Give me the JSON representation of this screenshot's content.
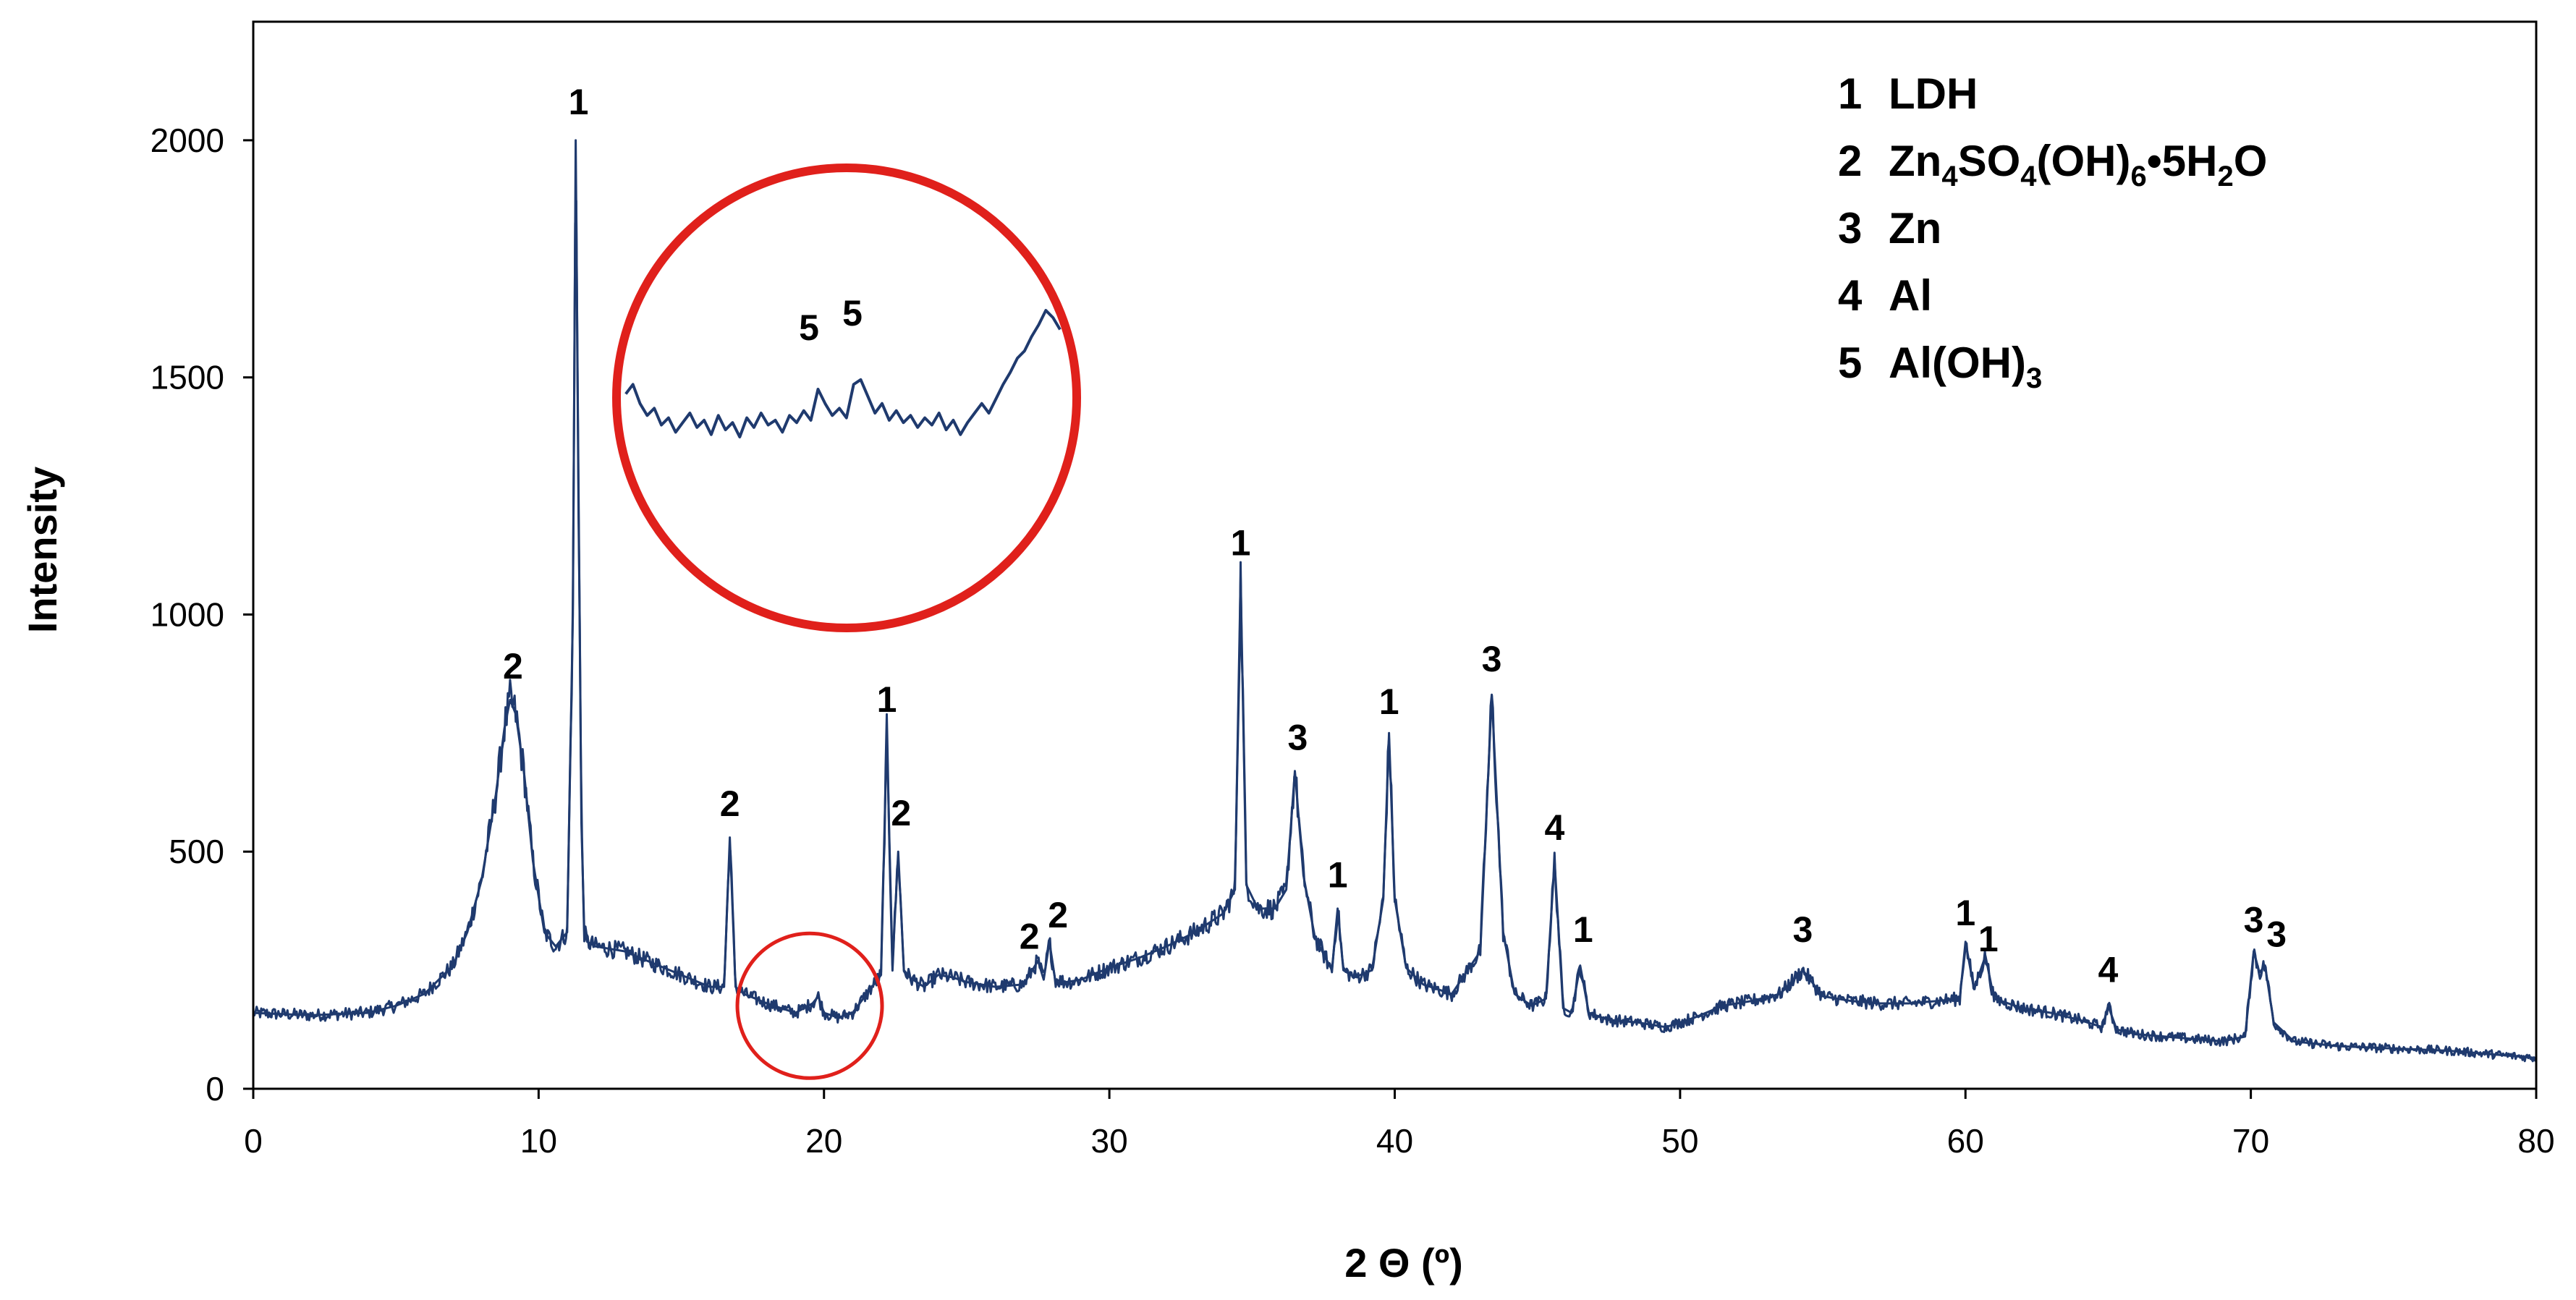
{
  "chart_data": {
    "type": "line",
    "xlabel": "2 Θ (º)",
    "ylabel": "Intensity",
    "xlim": [
      0,
      80
    ],
    "ylim": [
      0,
      2250
    ],
    "xticks": [
      "0",
      "10",
      "20",
      "30",
      "40",
      "50",
      "60",
      "70",
      "80"
    ],
    "yticks": [
      "0",
      "500",
      "1000",
      "1500",
      "2000"
    ],
    "grid": false,
    "line_color": "#1f3a6e",
    "highlight_color": "#e0201b",
    "series": [
      {
        "x": [
          0,
          2,
          4,
          5,
          6,
          7,
          7.5,
          8,
          8.5,
          8.8,
          9.0,
          9.2,
          9.5,
          9.8,
          10.2,
          10.6,
          11.0,
          11.2,
          11.3,
          11.4,
          11.5,
          11.6,
          11.7,
          12,
          13,
          14,
          15,
          16,
          16.5,
          16.7,
          16.9,
          17.2,
          18,
          19,
          19.6,
          19.8,
          20,
          20.5,
          21,
          21.5,
          22.0,
          22.2,
          22.4,
          22.6,
          22.8,
          23.0,
          23.5,
          24,
          24.5,
          25,
          26,
          27,
          27.5,
          27.7,
          27.9,
          28.1,
          28.5,
          29,
          30,
          31,
          32,
          33,
          34,
          34.4,
          34.6,
          34.8,
          35.2,
          35.8,
          36.2,
          36.5,
          36.8,
          37.2,
          37.8,
          38.0,
          38.2,
          38.6,
          39.2,
          39.6,
          39.8,
          40.0,
          40.4,
          41,
          42,
          43.0,
          43.4,
          43.8,
          44.2,
          44.8,
          45.3,
          45.6,
          45.9,
          46.2,
          46.5,
          46.8,
          47.5,
          48.5,
          49.5,
          50.5,
          51.5,
          52.5,
          53.5,
          54.3,
          55,
          56,
          57,
          58,
          59,
          59.8,
          60.0,
          60.3,
          60.7,
          61.0,
          62,
          63,
          64,
          64.8,
          65.0,
          65.3,
          66,
          67,
          68,
          69,
          69.8,
          70.1,
          70.3,
          70.5,
          70.8,
          71.5,
          73,
          75,
          77,
          79,
          80
        ],
        "y": [
          160,
          155,
          160,
          175,
          200,
          260,
          330,
          440,
          620,
          760,
          820,
          790,
          660,
          480,
          330,
          300,
          330,
          1000,
          2000,
          1250,
          560,
          330,
          310,
          300,
          290,
          265,
          240,
          215,
          215,
          530,
          215,
          200,
          180,
          160,
          180,
          195,
          160,
          150,
          160,
          200,
          240,
          750,
          260,
          500,
          250,
          235,
          215,
          240,
          235,
          225,
          215,
          220,
          270,
          230,
          310,
          230,
          225,
          230,
          255,
          275,
          300,
          330,
          370,
          420,
          1080,
          430,
          380,
          380,
          420,
          670,
          450,
          320,
          250,
          380,
          250,
          235,
          250,
          400,
          750,
          400,
          255,
          220,
          200,
          290,
          830,
          330,
          200,
          175,
          190,
          480,
          170,
          160,
          260,
          160,
          145,
          140,
          130,
          150,
          175,
          185,
          200,
          250,
          195,
          185,
          180,
          180,
          185,
          190,
          310,
          210,
          280,
          190,
          170,
          160,
          145,
          130,
          175,
          125,
          115,
          110,
          105,
          100,
          110,
          290,
          245,
          260,
          140,
          100,
          90,
          85,
          80,
          70,
          65
        ]
      }
    ],
    "peak_annotations": [
      {
        "label": "1",
        "x": 11.4,
        "y": 2055
      },
      {
        "label": "2",
        "x": 9.1,
        "y": 865
      },
      {
        "label": "2",
        "x": 16.7,
        "y": 575
      },
      {
        "label": "1",
        "x": 22.2,
        "y": 795
      },
      {
        "label": "2",
        "x": 22.7,
        "y": 555
      },
      {
        "label": "2",
        "x": 27.2,
        "y": 295
      },
      {
        "label": "2",
        "x": 28.2,
        "y": 340
      },
      {
        "label": "1",
        "x": 34.6,
        "y": 1125
      },
      {
        "label": "3",
        "x": 36.6,
        "y": 715
      },
      {
        "label": "1",
        "x": 38.0,
        "y": 425
      },
      {
        "label": "1",
        "x": 39.8,
        "y": 790
      },
      {
        "label": "3",
        "x": 43.4,
        "y": 880
      },
      {
        "label": "4",
        "x": 45.6,
        "y": 525
      },
      {
        "label": "1",
        "x": 46.6,
        "y": 310
      },
      {
        "label": "3",
        "x": 54.3,
        "y": 310
      },
      {
        "label": "1",
        "x": 60.0,
        "y": 345
      },
      {
        "label": "1",
        "x": 60.8,
        "y": 290
      },
      {
        "label": "4",
        "x": 65.0,
        "y": 225
      },
      {
        "label": "3",
        "x": 70.1,
        "y": 330
      },
      {
        "label": "3",
        "x": 70.9,
        "y": 300
      }
    ],
    "inset": {
      "label_left": "5",
      "label_right": "5",
      "trace": [
        0.55,
        0.62,
        0.58,
        0.66,
        0.71,
        0.68,
        0.75,
        0.72,
        0.78,
        0.74,
        0.7,
        0.76,
        0.73,
        0.79,
        0.71,
        0.77,
        0.74,
        0.8,
        0.72,
        0.76,
        0.7,
        0.75,
        0.73,
        0.78,
        0.71,
        0.74,
        0.69,
        0.73,
        0.6,
        0.66,
        0.71,
        0.68,
        0.72,
        0.58,
        0.56,
        0.63,
        0.7,
        0.66,
        0.73,
        0.69,
        0.74,
        0.71,
        0.76,
        0.72,
        0.75,
        0.7,
        0.77,
        0.73,
        0.79,
        0.74,
        0.7,
        0.66,
        0.7,
        0.64,
        0.58,
        0.53,
        0.47,
        0.44,
        0.38,
        0.33,
        0.27,
        0.3,
        0.35
      ]
    }
  },
  "legend": {
    "entries": [
      {
        "num": "1",
        "parts": [
          {
            "t": "LDH"
          }
        ]
      },
      {
        "num": "2",
        "parts": [
          {
            "t": "Zn"
          },
          {
            "t": "4",
            "sub": true
          },
          {
            "t": "SO"
          },
          {
            "t": "4",
            "sub": true
          },
          {
            "t": "(OH)"
          },
          {
            "t": "6",
            "sub": true
          },
          {
            "t": "•5H"
          },
          {
            "t": "2",
            "sub": true
          },
          {
            "t": "O"
          }
        ]
      },
      {
        "num": "3",
        "parts": [
          {
            "t": "Zn"
          }
        ]
      },
      {
        "num": "4",
        "parts": [
          {
            "t": "Al"
          }
        ]
      },
      {
        "num": "5",
        "parts": [
          {
            "t": "Al(OH)"
          },
          {
            "t": "3",
            "sub": true
          }
        ]
      }
    ]
  }
}
